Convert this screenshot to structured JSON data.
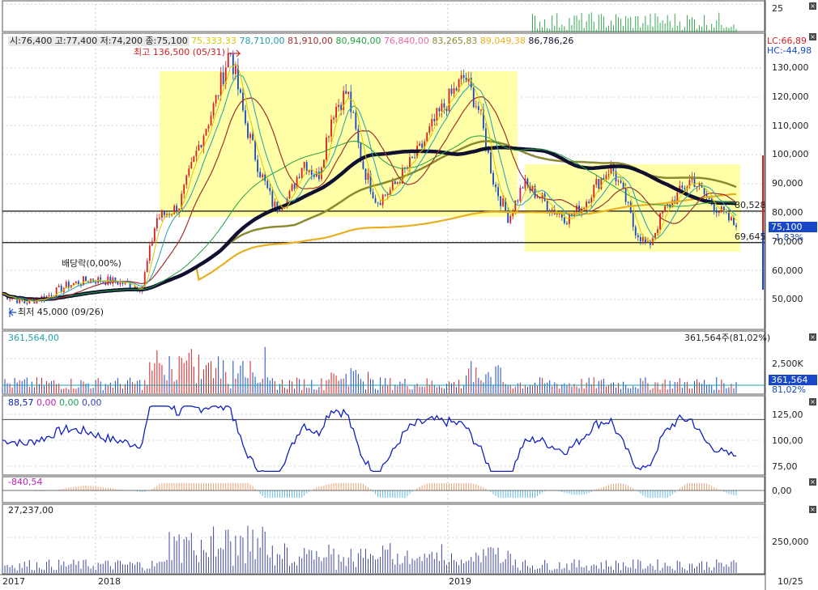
{
  "colors": {
    "up": "#d82020",
    "down": "#1848c8",
    "highlight": "#ffff99",
    "ma5": "#d8c800",
    "ma10": "#20a0a8",
    "ma20": "#a03030",
    "ma60": "#20a040",
    "ma120": "#e86aa0",
    "ma200": "#8c8a30",
    "ma240": "#e8b020",
    "ma_long": "#101030",
    "volume_line": "#20a0a8",
    "osc_line": "#1020c0",
    "macd_pos": "#f0a070",
    "macd_neg": "#60b8e8",
    "dimeter": "#4048a0"
  },
  "header": {
    "ohlc": "시:76,400 고:77,400 저:74,200 종:75,100",
    "ma_values": [
      {
        "text": "75,333,33",
        "color": "#d8c800"
      },
      {
        "text": "78,710,00",
        "color": "#20a0a8"
      },
      {
        "text": "81,910,00",
        "color": "#a03030"
      },
      {
        "text": "80,940,00",
        "color": "#20a040"
      },
      {
        "text": "76,840,00",
        "color": "#e86aa0"
      },
      {
        "text": "83,265,83",
        "color": "#8c8a30"
      },
      {
        "text": "89,049,38",
        "color": "#e8b020"
      },
      {
        "text": "86,786,26",
        "color": "#101030"
      }
    ],
    "lc": "LC:66,89",
    "hc": "HC:-44,98"
  },
  "annotations": {
    "high": "최고 136,500 (05/31)",
    "low": "최저 45,000 (09/26)",
    "dividend": "배당락(0,00%)",
    "line1": "80,528",
    "line2": "69,645",
    "current_price": "75,100",
    "change": "-1,83%"
  },
  "volume_panel": {
    "value": "361,564,00",
    "right_label": "361,564주(81,02%)",
    "box_value": "361,564",
    "box_pct": "81,02%",
    "axis_tick": "2,500K"
  },
  "osc_panel": {
    "legend": [
      {
        "text": "88,57",
        "color": "#1020c0"
      },
      {
        "text": "0,00",
        "color": "#c020c0"
      },
      {
        "text": "0,00",
        "color": "#20a060"
      },
      {
        "text": "0,00",
        "color": "#4040c0"
      }
    ],
    "ticks": [
      "125,00",
      "100,00",
      "75,00"
    ]
  },
  "macd_panel": {
    "value": "-840,54",
    "tick": "0,00"
  },
  "bottom_panel": {
    "value": "27,237,00",
    "tick": "250,000"
  },
  "x_axis": {
    "labels": [
      "2017",
      "2018",
      "2019"
    ],
    "right": "10/25"
  },
  "y_axis": {
    "top_tick": "25",
    "price_ticks": [
      "130,000",
      "120,000",
      "110,000",
      "100,000",
      "90,000",
      "80,000",
      "70,000",
      "60,000",
      "50,000"
    ]
  },
  "panel_button_icon": "close-icon",
  "chart_data": {
    "type": "candlestick",
    "x_range": [
      "2017",
      "2019/10/25"
    ],
    "ylim": [
      40000,
      140000
    ],
    "price_path": [
      [
        0,
        52000
      ],
      [
        0.03,
        49000
      ],
      [
        0.06,
        51000
      ],
      [
        0.09,
        55000
      ],
      [
        0.12,
        57000
      ],
      [
        0.16,
        56000
      ],
      [
        0.19,
        54000
      ],
      [
        0.21,
        78000
      ],
      [
        0.24,
        82000
      ],
      [
        0.27,
        105000
      ],
      [
        0.29,
        118000
      ],
      [
        0.31,
        136500
      ],
      [
        0.33,
        112000
      ],
      [
        0.35,
        95000
      ],
      [
        0.37,
        82000
      ],
      [
        0.39,
        85000
      ],
      [
        0.41,
        98000
      ],
      [
        0.43,
        92000
      ],
      [
        0.45,
        115000
      ],
      [
        0.47,
        122000
      ],
      [
        0.49,
        97000
      ],
      [
        0.51,
        84000
      ],
      [
        0.53,
        88000
      ],
      [
        0.55,
        95000
      ],
      [
        0.57,
        102000
      ],
      [
        0.59,
        112000
      ],
      [
        0.61,
        120000
      ],
      [
        0.63,
        127000
      ],
      [
        0.65,
        115000
      ],
      [
        0.67,
        90000
      ],
      [
        0.69,
        78000
      ],
      [
        0.71,
        90000
      ],
      [
        0.73,
        86000
      ],
      [
        0.75,
        81000
      ],
      [
        0.77,
        78000
      ],
      [
        0.79,
        82000
      ],
      [
        0.81,
        90000
      ],
      [
        0.83,
        96000
      ],
      [
        0.85,
        84000
      ],
      [
        0.86,
        75000
      ],
      [
        0.88,
        68000
      ],
      [
        0.9,
        80000
      ],
      [
        0.92,
        86000
      ],
      [
        0.94,
        92000
      ],
      [
        0.96,
        85000
      ],
      [
        0.98,
        80000
      ],
      [
        1,
        75100
      ]
    ],
    "high": {
      "value": 136500,
      "date": "05/31"
    },
    "low": {
      "value": 45000,
      "date": "09/26"
    },
    "horizontal_lines": [
      80528,
      69645
    ],
    "last_close": 75100
  }
}
